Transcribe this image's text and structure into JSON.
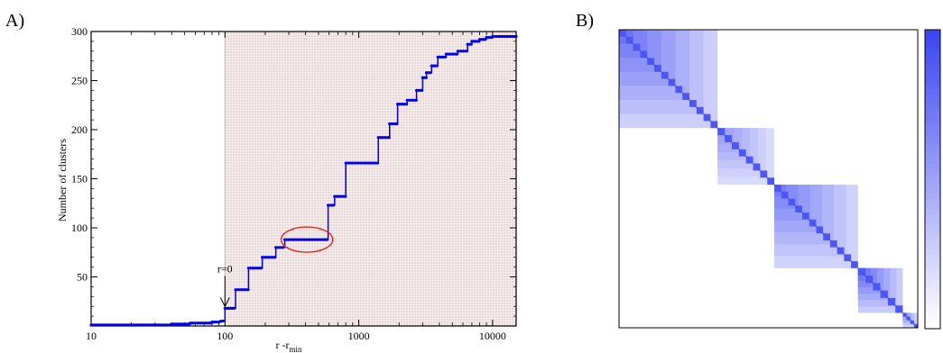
{
  "panels": {
    "a_label": "A)",
    "b_label": "B)"
  },
  "chart_data": [
    {
      "type": "line",
      "xlabel": "r -r",
      "xlabel_subscript": "min",
      "ylabel": "Number of clusters",
      "xscale": "log",
      "xlim": [
        10,
        15000
      ],
      "ylim": [
        0,
        300
      ],
      "x_ticks": [
        10,
        100,
        1000,
        10000
      ],
      "x_tick_labels": [
        "10",
        "100",
        "1000",
        "10000"
      ],
      "y_ticks": [
        50,
        100,
        150,
        200,
        250,
        300
      ],
      "y_tick_labels": [
        "50",
        "100",
        "150",
        "200",
        "250",
        "300"
      ],
      "shaded_region_x": [
        100,
        15000
      ],
      "annotation": {
        "text": "r=0",
        "x": 100,
        "y": 18
      },
      "highlight_ellipse": {
        "x_range": [
          280,
          600
        ],
        "y": 88
      },
      "series": [
        {
          "color": "#0000ee",
          "x": [
            10,
            20,
            30,
            40,
            48,
            55,
            70,
            80,
            93,
            97,
            100,
            120,
            150,
            190,
            240,
            280,
            560,
            590,
            660,
            800,
            1300,
            1400,
            1700,
            1950,
            2300,
            2700,
            3000,
            3200,
            3500,
            3900,
            4500,
            5500,
            6500,
            7000,
            8000,
            9000,
            10000,
            12000,
            15000
          ],
          "y": [
            1,
            1,
            1,
            2,
            2,
            3,
            3,
            4,
            5,
            5,
            18,
            37,
            59,
            70,
            80,
            88,
            88,
            123,
            132,
            166,
            166,
            192,
            206,
            226,
            230,
            240,
            253,
            258,
            265,
            274,
            277,
            280,
            287,
            290,
            292,
            294,
            295,
            295,
            295
          ]
        }
      ]
    },
    {
      "type": "heatmap",
      "blocks": [
        {
          "start": 0,
          "end": 0.33,
          "max_level": 0.75
        },
        {
          "start": 0.33,
          "end": 0.52,
          "max_level": 0.55
        },
        {
          "start": 0.52,
          "end": 0.8,
          "max_level": 0.7
        },
        {
          "start": 0.8,
          "end": 0.95,
          "max_level": 0.8
        },
        {
          "start": 0.95,
          "end": 1.0,
          "max_level": 0.65
        }
      ],
      "colormap": [
        "#ffffff",
        "#3b46f0"
      ],
      "colorbar": true
    }
  ]
}
